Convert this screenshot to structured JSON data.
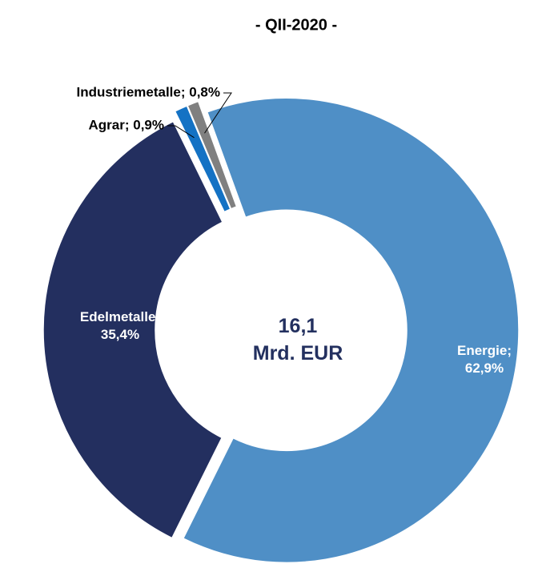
{
  "chart_data": {
    "type": "donut",
    "title": "- QII-2020 -",
    "center_label": "16,1 Mrd. EUR",
    "labels": [
      "Energie; 62,9%",
      "Edelmetalle; 35,4%",
      "Agrar; 0,9%",
      "Industriemetalle; 0,8%"
    ],
    "values": [
      62.9,
      35.4,
      0.9,
      0.8
    ],
    "colors": [
      "#4f8fc6",
      "#232f5f",
      "#1472c4",
      "#808080"
    ]
  }
}
